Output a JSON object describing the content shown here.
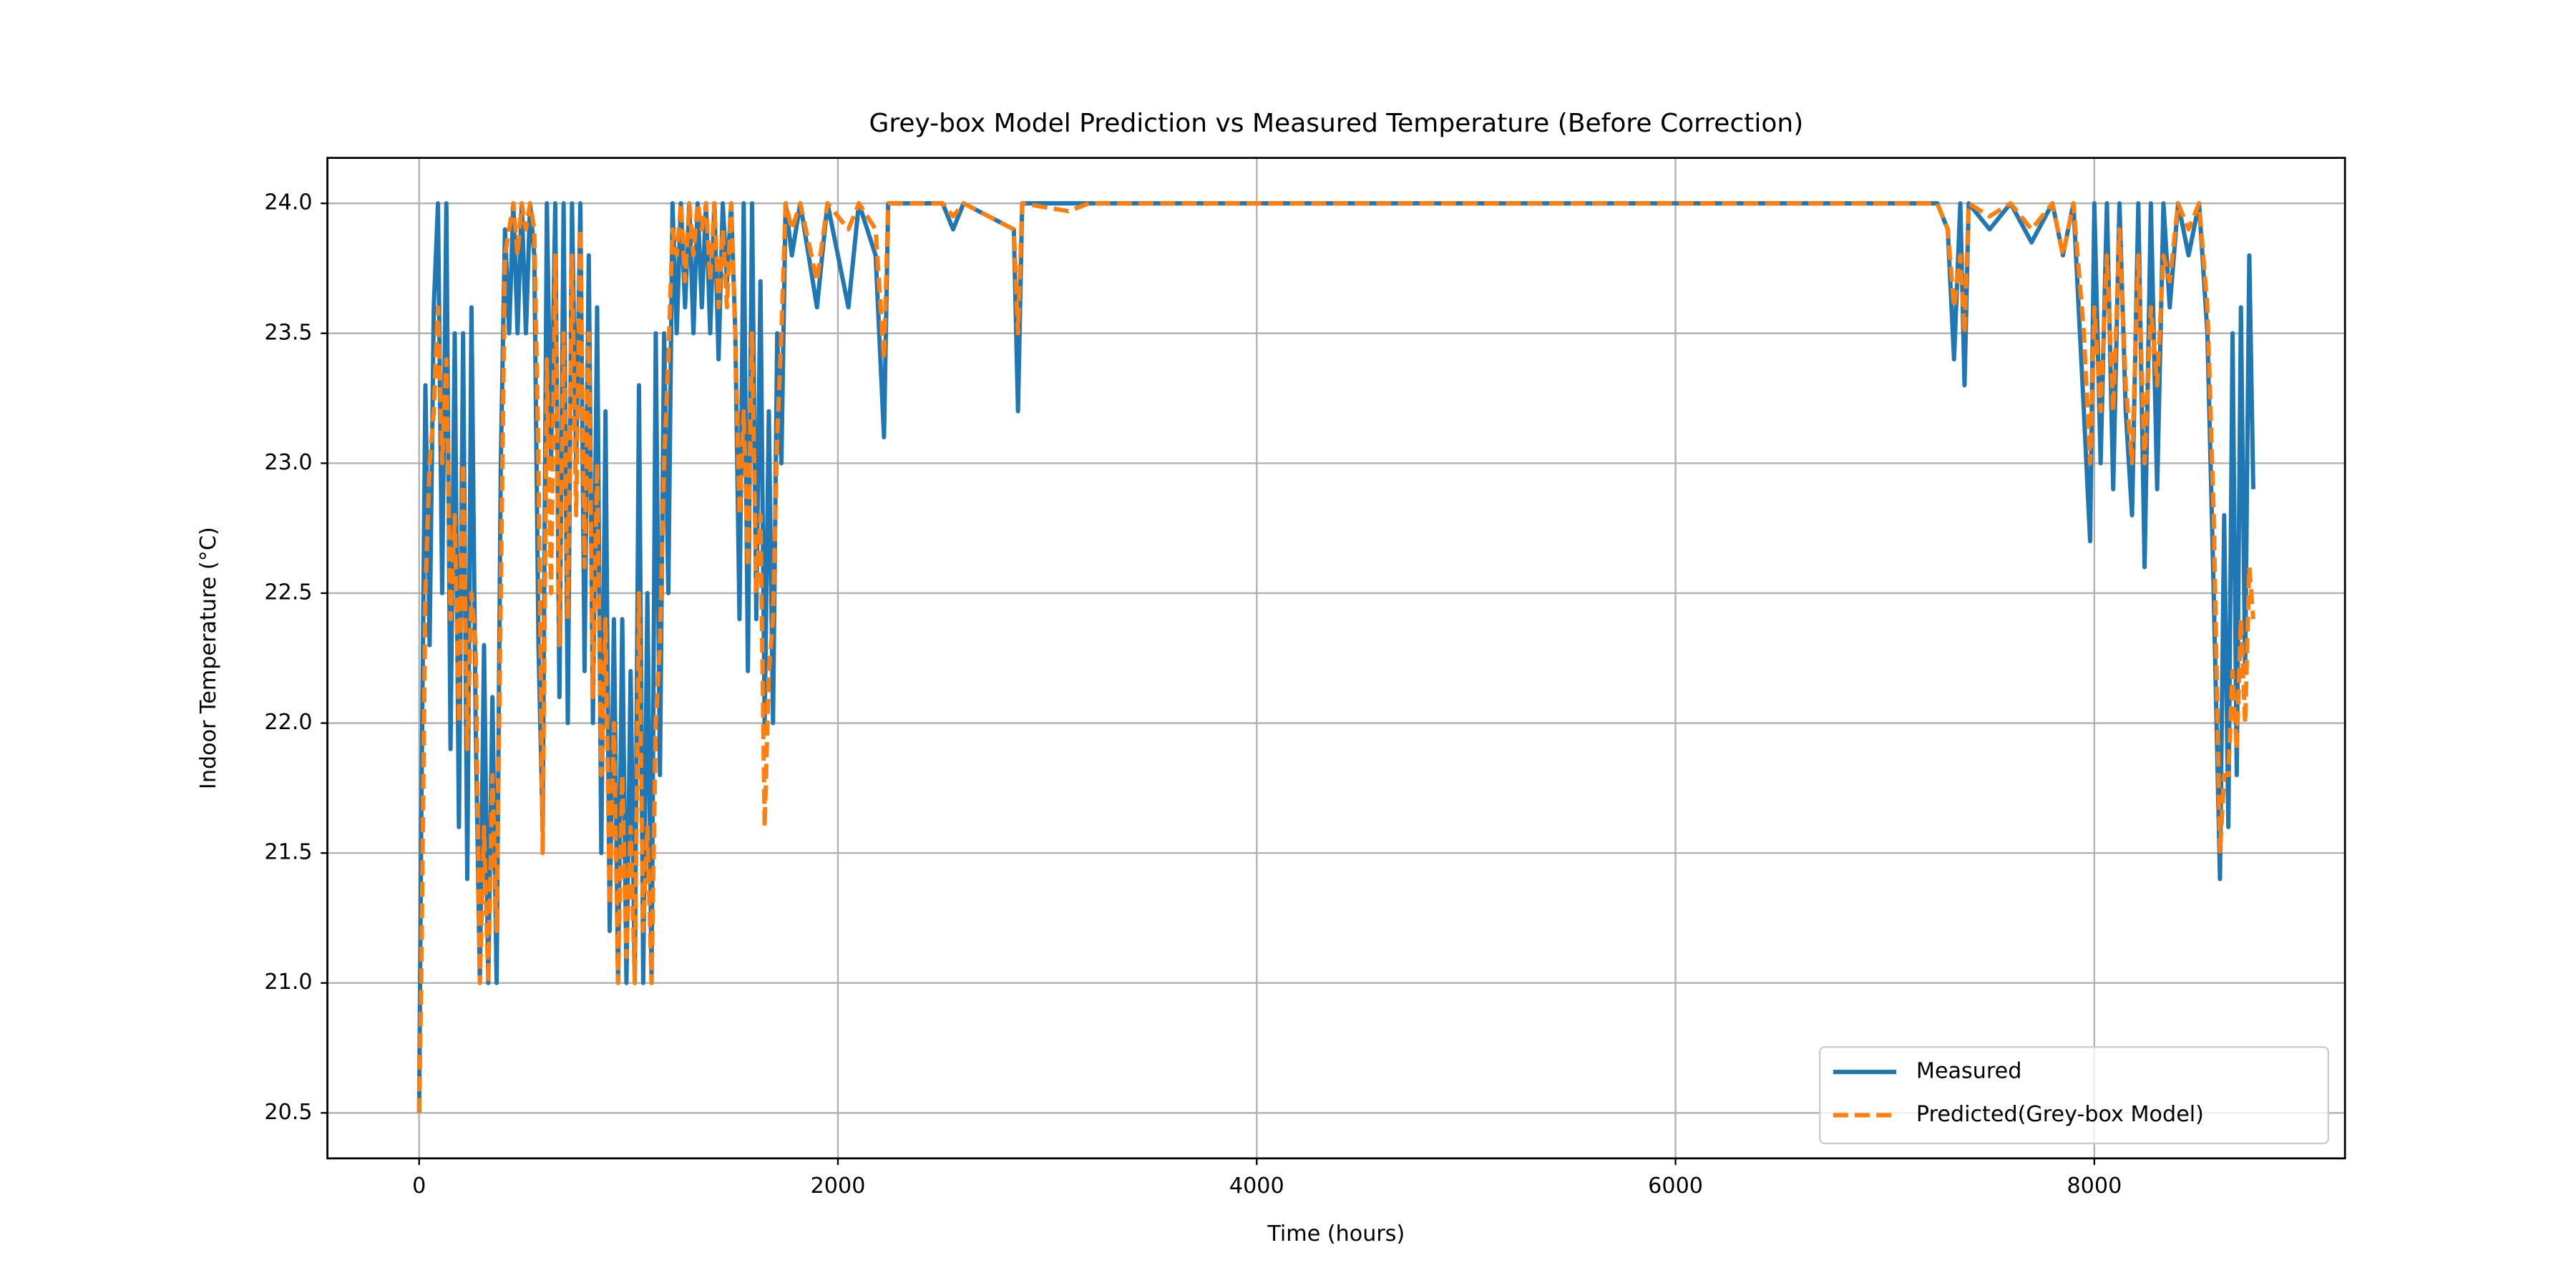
{
  "chart_data": {
    "type": "line",
    "title": "Grey-box Model Prediction vs Measured Temperature (Before Correction)",
    "x_label": "Time (hours)",
    "y_label": "Indoor Temperature (°C)",
    "xlim": [
      -438,
      9197
    ],
    "xticks": [
      0,
      2000,
      4000,
      6000,
      8000
    ],
    "ylim": [
      20.325,
      24.175
    ],
    "yticks": [
      {
        "value": 20.5,
        "label": "20.5"
      },
      {
        "value": 21,
        "label": "21.0"
      },
      {
        "value": 21.5,
        "label": "21.5"
      },
      {
        "value": 22,
        "label": "22.0"
      },
      {
        "value": 22.5,
        "label": "22.5"
      },
      {
        "value": 23,
        "label": "23.0"
      },
      {
        "value": 23.5,
        "label": "23.5"
      },
      {
        "value": 24,
        "label": "24.0"
      }
    ],
    "grid": true,
    "legend": "lower right",
    "x": [
      0,
      10,
      30,
      50,
      70,
      90,
      110,
      130,
      150,
      170,
      190,
      210,
      230,
      250,
      270,
      290,
      310,
      330,
      350,
      370,
      390,
      410,
      430,
      450,
      470,
      490,
      510,
      530,
      550,
      570,
      590,
      610,
      630,
      650,
      670,
      690,
      710,
      730,
      750,
      770,
      790,
      810,
      830,
      850,
      870,
      890,
      910,
      930,
      950,
      970,
      990,
      1010,
      1030,
      1050,
      1070,
      1090,
      1110,
      1130,
      1150,
      1170,
      1190,
      1210,
      1230,
      1250,
      1270,
      1290,
      1310,
      1330,
      1350,
      1370,
      1390,
      1410,
      1430,
      1450,
      1470,
      1490,
      1510,
      1530,
      1550,
      1570,
      1590,
      1610,
      1630,
      1650,
      1670,
      1690,
      1710,
      1730,
      1750,
      1780,
      1820,
      1900,
      1950,
      2050,
      2100,
      2180,
      2220,
      2240,
      2500,
      2550,
      2600,
      2840,
      2860,
      2880,
      3100,
      3200,
      7250,
      7300,
      7330,
      7360,
      7380,
      7400,
      7500,
      7600,
      7700,
      7800,
      7850,
      7900,
      7950,
      7980,
      8000,
      8030,
      8060,
      8090,
      8120,
      8150,
      8180,
      8210,
      8240,
      8270,
      8300,
      8330,
      8360,
      8400,
      8450,
      8500,
      8540,
      8570,
      8600,
      8620,
      8640,
      8660,
      8680,
      8700,
      8720,
      8740,
      8759
    ],
    "series": [
      {
        "name": "Measured",
        "color": "#1f77b4",
        "dash": false,
        "values": [
          20.5,
          21.6,
          23.3,
          22.3,
          23.6,
          24.0,
          22.5,
          24.0,
          21.9,
          23.5,
          21.6,
          23.5,
          21.4,
          23.6,
          22.0,
          21.0,
          22.3,
          21.0,
          22.1,
          21.0,
          23.0,
          23.9,
          23.5,
          24.0,
          23.5,
          24.0,
          23.5,
          24.0,
          23.8,
          22.3,
          21.6,
          24.0,
          23.0,
          24.0,
          22.1,
          24.0,
          22.0,
          24.0,
          23.0,
          24.0,
          22.2,
          23.8,
          22.0,
          23.6,
          21.5,
          23.2,
          21.2,
          22.4,
          21.0,
          22.4,
          21.0,
          22.2,
          21.0,
          23.3,
          21.0,
          22.5,
          21.0,
          23.5,
          21.8,
          23.5,
          22.5,
          24.0,
          23.5,
          24.0,
          23.6,
          24.0,
          23.5,
          24.0,
          23.6,
          24.0,
          23.5,
          24.0,
          23.4,
          24.0,
          23.7,
          24.0,
          23.5,
          22.4,
          24.0,
          22.2,
          24.0,
          22.4,
          23.7,
          22.0,
          23.2,
          22.0,
          23.5,
          23.0,
          24.0,
          23.8,
          24.0,
          23.6,
          24.0,
          23.6,
          24.0,
          23.8,
          23.1,
          24.0,
          24.0,
          23.9,
          24.0,
          23.9,
          23.2,
          24.0,
          24.0,
          24.0,
          24.0,
          23.9,
          23.4,
          24.0,
          23.3,
          24.0,
          23.9,
          24.0,
          23.85,
          24.0,
          23.8,
          24.0,
          23.2,
          22.7,
          24.0,
          23.0,
          24.0,
          22.9,
          24.0,
          23.2,
          22.8,
          24.0,
          22.6,
          24.0,
          22.9,
          24.0,
          23.6,
          24.0,
          23.8,
          24.0,
          23.5,
          22.5,
          21.4,
          22.8,
          21.6,
          23.5,
          21.8,
          23.6,
          22.2,
          23.8,
          22.9
        ]
      },
      {
        "name": "Predicted(Grey-box Model)",
        "color": "#ff7f0e",
        "dash": true,
        "values": [
          20.5,
          21.0,
          22.5,
          23.0,
          23.2,
          23.6,
          23.0,
          23.4,
          22.4,
          22.8,
          22.0,
          23.0,
          21.9,
          22.5,
          22.3,
          21.0,
          21.6,
          21.0,
          21.8,
          21.2,
          22.5,
          23.8,
          23.9,
          24.0,
          23.8,
          24.0,
          23.9,
          24.0,
          23.9,
          23.0,
          21.5,
          23.4,
          22.5,
          23.8,
          22.3,
          23.5,
          22.4,
          23.8,
          22.8,
          23.9,
          22.6,
          23.5,
          22.1,
          23.0,
          21.8,
          22.4,
          21.3,
          22.0,
          21.0,
          21.8,
          21.1,
          21.6,
          21.0,
          22.5,
          21.2,
          21.6,
          21.0,
          22.0,
          22.3,
          23.0,
          23.4,
          23.9,
          23.8,
          24.0,
          23.7,
          24.0,
          23.8,
          24.0,
          23.9,
          24.0,
          23.7,
          24.0,
          23.6,
          23.9,
          23.6,
          24.0,
          23.5,
          22.8,
          23.2,
          22.6,
          23.5,
          22.5,
          22.8,
          21.6,
          22.2,
          22.4,
          23.1,
          23.5,
          24.0,
          23.9,
          24.0,
          23.7,
          24.0,
          23.9,
          24.0,
          23.9,
          23.4,
          24.0,
          24.0,
          23.95,
          24.0,
          23.9,
          23.5,
          24.0,
          23.97,
          24.0,
          24.0,
          23.9,
          23.6,
          23.8,
          23.5,
          24.0,
          23.95,
          24.0,
          23.9,
          24.0,
          23.8,
          24.0,
          23.5,
          23.0,
          23.6,
          23.2,
          23.8,
          23.2,
          23.9,
          23.3,
          23.0,
          23.8,
          23.0,
          23.6,
          23.3,
          23.8,
          23.7,
          24.0,
          23.9,
          24.0,
          23.6,
          22.8,
          21.5,
          21.8,
          21.8,
          22.2,
          21.9,
          22.4,
          22.0,
          22.6,
          22.4
        ]
      }
    ]
  }
}
